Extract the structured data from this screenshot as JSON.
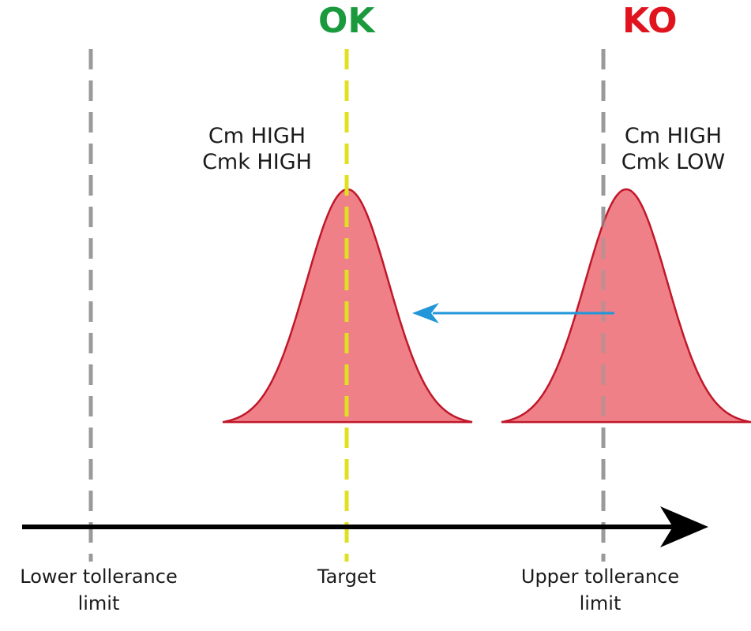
{
  "colors": {
    "ok": "#1a9a3d",
    "ko": "#e0141e",
    "limit_line": "#9a9a9a",
    "target_line": "#e0e020",
    "curve_fill": "#f08088",
    "curve_stroke": "#c0182a",
    "shift_arrow": "#2196d8",
    "axis": "#000000"
  },
  "status": {
    "ok": "OK",
    "ko": "KO"
  },
  "curves": {
    "centered": {
      "line1": "Cm HIGH",
      "line2": "Cmk HIGH"
    },
    "shifted": {
      "line1": "Cm HIGH",
      "line2": "Cmk LOW"
    }
  },
  "axis_labels": {
    "lower": {
      "line1": "Lower tollerance",
      "line2": "limit"
    },
    "target": "Target",
    "upper": {
      "line1": "Upper tollerance",
      "line2": "limit"
    }
  }
}
